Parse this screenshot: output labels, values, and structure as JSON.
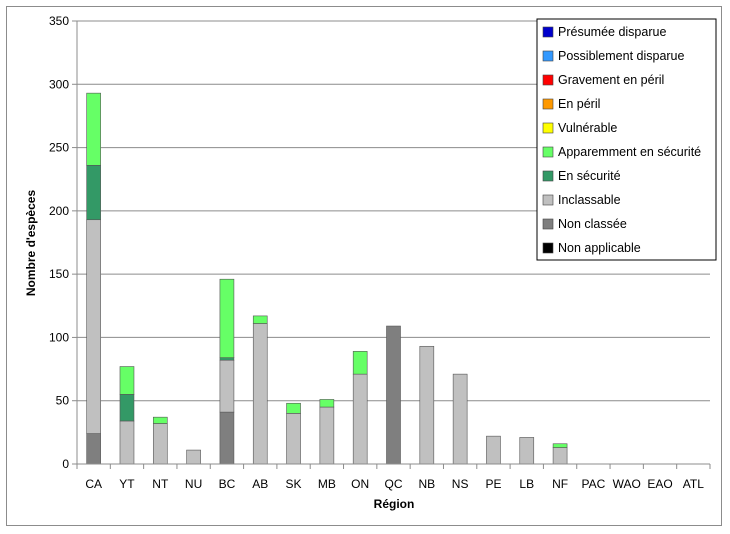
{
  "chart_data": {
    "type": "bar",
    "stacked": true,
    "title": "",
    "xlabel": "Région",
    "ylabel": "Nombre d'espèces",
    "ylim": [
      0,
      350
    ],
    "yticks": [
      0,
      50,
      100,
      150,
      200,
      250,
      300,
      350
    ],
    "grid": true,
    "legend_position": "top-right",
    "categories": [
      "CA",
      "YT",
      "NT",
      "NU",
      "BC",
      "AB",
      "SK",
      "MB",
      "ON",
      "QC",
      "NB",
      "NS",
      "PE",
      "LB",
      "NF",
      "PAC",
      "WAO",
      "EAO",
      "ATL"
    ],
    "series": [
      {
        "name": "Non applicable",
        "color": "#000000",
        "values": [
          0,
          0,
          0,
          0,
          0,
          0,
          0,
          0,
          0,
          0,
          0,
          0,
          0,
          0,
          0,
          0,
          0,
          0,
          0
        ]
      },
      {
        "name": "Non classée",
        "color": "#7f7f7f",
        "values": [
          24,
          0,
          0,
          0,
          41,
          0,
          0,
          0,
          0,
          109,
          0,
          0,
          0,
          0,
          0,
          0,
          0,
          0,
          0
        ]
      },
      {
        "name": "Inclassable",
        "color": "#c0c0c0",
        "values": [
          169,
          34,
          32,
          11,
          41,
          111,
          40,
          45,
          71,
          0,
          93,
          71,
          22,
          21,
          13,
          0,
          0,
          0,
          0
        ]
      },
      {
        "name": "En sécurité",
        "color": "#339966",
        "values": [
          43,
          21,
          0,
          0,
          2,
          0,
          0,
          0,
          0,
          0,
          0,
          0,
          0,
          0,
          0,
          0,
          0,
          0,
          0
        ]
      },
      {
        "name": "Apparemment en sécurité",
        "color": "#66ff66",
        "values": [
          57,
          22,
          5,
          0,
          62,
          6,
          8,
          6,
          18,
          0,
          0,
          0,
          0,
          0,
          3,
          0,
          0,
          0,
          0
        ]
      },
      {
        "name": "Vulnérable",
        "color": "#ffff00",
        "values": [
          0,
          0,
          0,
          0,
          0,
          0,
          0,
          0,
          0,
          0,
          0,
          0,
          0,
          0,
          0,
          0,
          0,
          0,
          0
        ]
      },
      {
        "name": "En péril",
        "color": "#ff9900",
        "values": [
          0,
          0,
          0,
          0,
          0,
          0,
          0,
          0,
          0,
          0,
          0,
          0,
          0,
          0,
          0,
          0,
          0,
          0,
          0
        ]
      },
      {
        "name": "Gravement en péril",
        "color": "#ff0000",
        "values": [
          0,
          0,
          0,
          0,
          0,
          0,
          0,
          0,
          0,
          0,
          0,
          0,
          0,
          0,
          0,
          0,
          0,
          0,
          0
        ]
      },
      {
        "name": "Possiblement disparue",
        "color": "#3399ff",
        "values": [
          0,
          0,
          0,
          0,
          0,
          0,
          0,
          0,
          0,
          0,
          0,
          0,
          0,
          0,
          0,
          0,
          0,
          0,
          0
        ]
      },
      {
        "name": "Présumée disparue",
        "color": "#0000cc",
        "values": [
          0,
          0,
          0,
          0,
          0,
          0,
          0,
          0,
          0,
          0,
          0,
          0,
          0,
          0,
          0,
          0,
          0,
          0,
          0
        ]
      }
    ],
    "legend_order": [
      "Présumée disparue",
      "Possiblement disparue",
      "Gravement en péril",
      "En péril",
      "Vulnérable",
      "Apparemment en sécurité",
      "En sécurité",
      "Inclassable",
      "Non classée",
      "Non applicable"
    ]
  }
}
